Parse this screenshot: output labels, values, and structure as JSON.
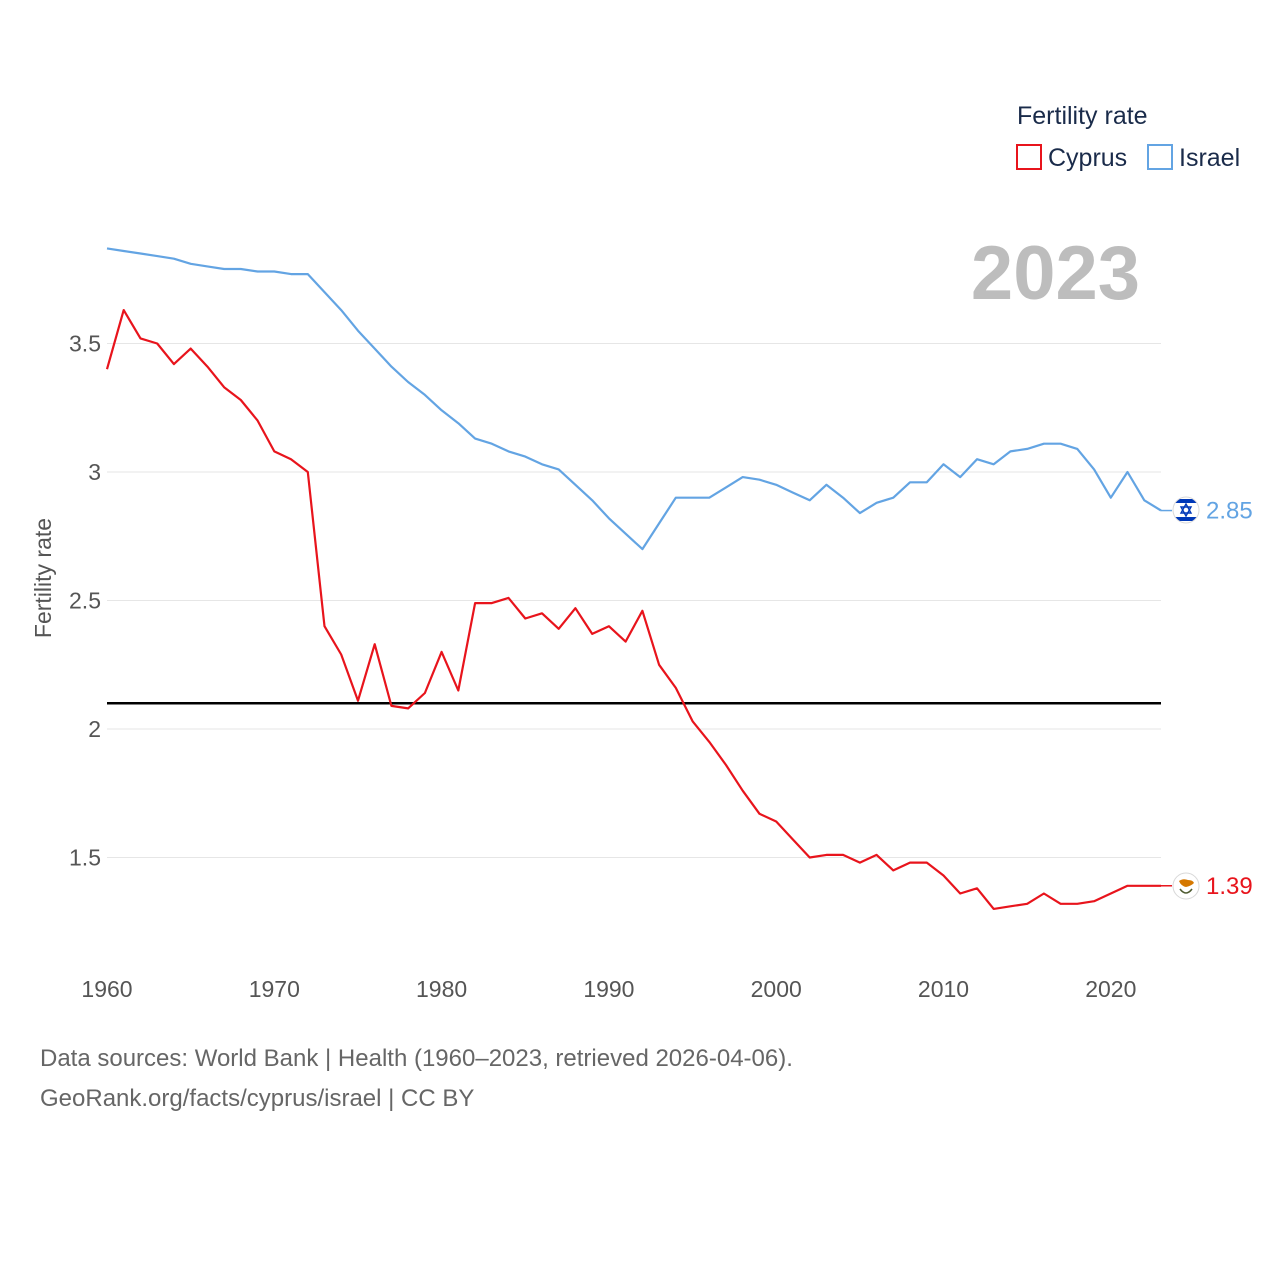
{
  "chart_data": {
    "type": "line",
    "title": "",
    "ylabel": "Fertility rate",
    "xlabel": "",
    "year_label": "2023",
    "legend": {
      "title": "Fertility rate",
      "placement": "top-right"
    },
    "xlim": [
      1960,
      2023
    ],
    "ylim": [
      1.1,
      4.0
    ],
    "x_ticks": [
      1960,
      1970,
      1980,
      1990,
      2000,
      2010,
      2020
    ],
    "x_tick_labels": [
      "1960",
      "1970",
      "1980",
      "1990",
      "2000",
      "2010",
      "2020"
    ],
    "y_ticks": [
      1.5,
      2,
      2.5,
      3,
      3.5
    ],
    "y_tick_labels": [
      "1.5",
      "2",
      "2.5",
      "3",
      "3.5"
    ],
    "reference_line": {
      "value": 2.1,
      "color": "#000000"
    },
    "x": [
      1960,
      1961,
      1962,
      1963,
      1964,
      1965,
      1966,
      1967,
      1968,
      1969,
      1970,
      1971,
      1972,
      1973,
      1974,
      1975,
      1976,
      1977,
      1978,
      1979,
      1980,
      1981,
      1982,
      1983,
      1984,
      1985,
      1986,
      1987,
      1988,
      1989,
      1990,
      1991,
      1992,
      1993,
      1994,
      1995,
      1996,
      1997,
      1998,
      1999,
      2000,
      2001,
      2002,
      2003,
      2004,
      2005,
      2006,
      2007,
      2008,
      2009,
      2010,
      2011,
      2012,
      2013,
      2014,
      2015,
      2016,
      2017,
      2018,
      2019,
      2020,
      2021,
      2022,
      2023
    ],
    "series": [
      {
        "name": "Cyprus",
        "color": "#e8141c",
        "end_label": "1.39",
        "flag": "cyprus-flag",
        "values": [
          3.4,
          3.63,
          3.52,
          3.5,
          3.42,
          3.48,
          3.41,
          3.33,
          3.28,
          3.2,
          3.08,
          3.05,
          3.0,
          2.4,
          2.29,
          2.11,
          2.33,
          2.09,
          2.08,
          2.14,
          2.3,
          2.15,
          2.49,
          2.49,
          2.51,
          2.43,
          2.45,
          2.39,
          2.47,
          2.37,
          2.4,
          2.34,
          2.46,
          2.25,
          2.16,
          2.03,
          1.95,
          1.86,
          1.76,
          1.67,
          1.64,
          1.57,
          1.5,
          1.51,
          1.51,
          1.48,
          1.51,
          1.45,
          1.48,
          1.48,
          1.43,
          1.36,
          1.38,
          1.3,
          1.31,
          1.32,
          1.36,
          1.32,
          1.32,
          1.33,
          1.36,
          1.39,
          1.39,
          1.39
        ]
      },
      {
        "name": "Israel",
        "color": "#63a4e3",
        "end_label": "2.85",
        "flag": "israel-flag",
        "values": [
          3.87,
          3.86,
          3.85,
          3.84,
          3.83,
          3.81,
          3.8,
          3.79,
          3.79,
          3.78,
          3.78,
          3.77,
          3.77,
          3.7,
          3.63,
          3.55,
          3.48,
          3.41,
          3.35,
          3.3,
          3.24,
          3.19,
          3.13,
          3.11,
          3.08,
          3.06,
          3.03,
          3.01,
          2.95,
          2.89,
          2.82,
          2.76,
          2.7,
          2.8,
          2.9,
          2.9,
          2.9,
          2.94,
          2.98,
          2.97,
          2.95,
          2.92,
          2.89,
          2.95,
          2.9,
          2.84,
          2.88,
          2.9,
          2.96,
          2.96,
          3.03,
          2.98,
          3.05,
          3.03,
          3.08,
          3.09,
          3.11,
          3.11,
          3.09,
          3.01,
          2.9,
          3.0,
          2.89,
          2.85
        ]
      }
    ]
  },
  "footer": {
    "line1": "Data sources: World Bank | Health (1960–2023, retrieved 2026-04-06).",
    "line2": "GeoRank.org/facts/cyprus/israel | CC BY"
  }
}
